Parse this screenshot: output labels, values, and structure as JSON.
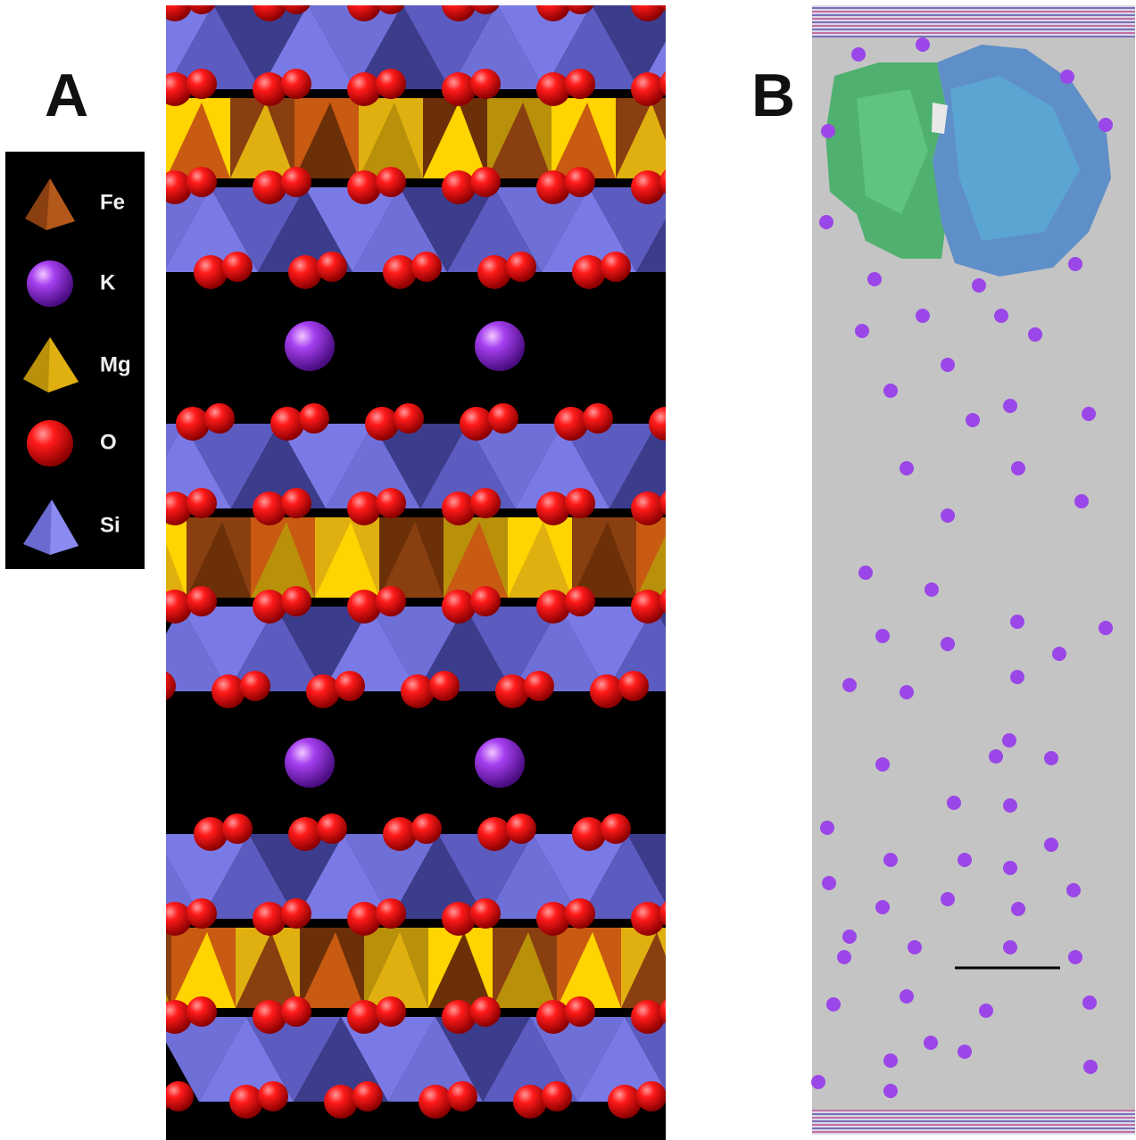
{
  "panel_a": {
    "label": "A",
    "legend": [
      "Fe",
      "K",
      "Mg",
      "O",
      "Si"
    ]
  },
  "panel_b": {
    "label": "B"
  }
}
